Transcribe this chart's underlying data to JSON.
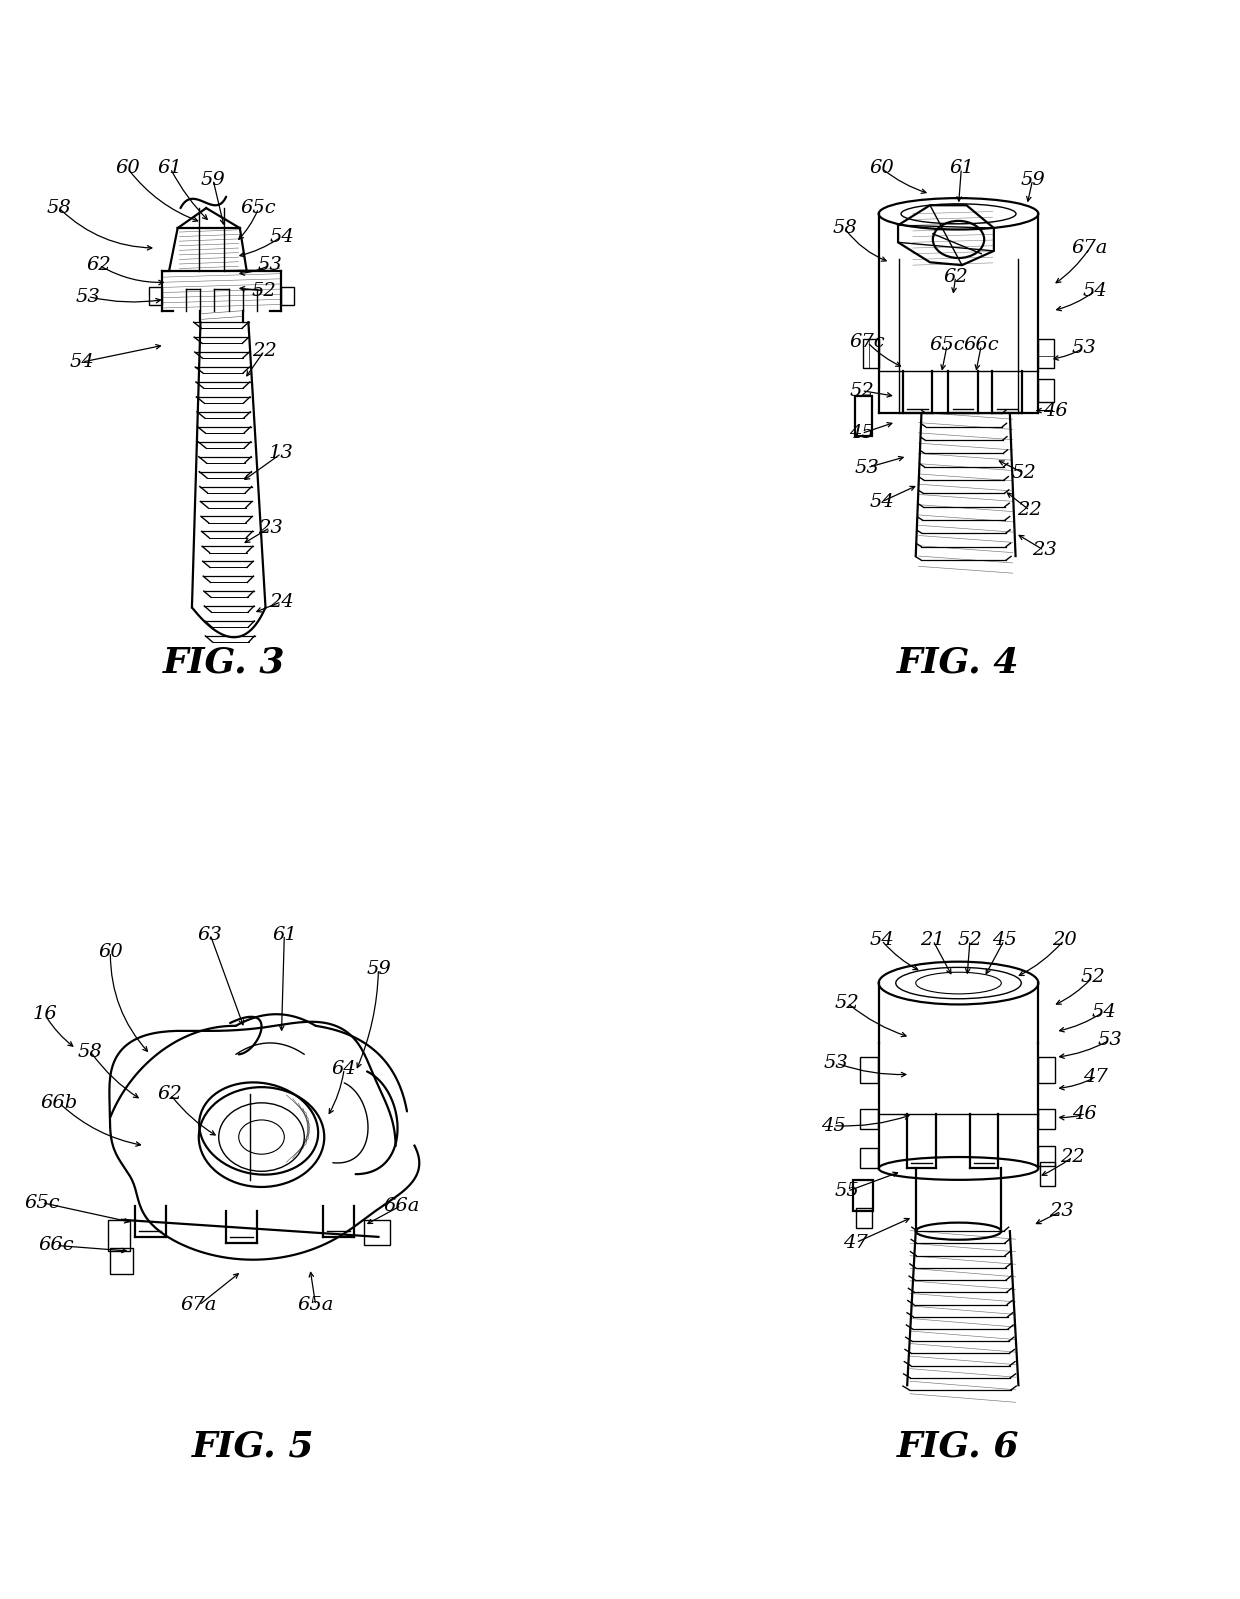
{
  "bg": "#ffffff",
  "lc": "#000000",
  "fw": 12.4,
  "fh": 15.99,
  "dpi": 100,
  "lw": 1.6,
  "lt": 1.0,
  "ls": 0.5,
  "fs_ref": 14,
  "fs_fig": 26,
  "fig3_label": "FIG. 3",
  "fig4_label": "FIG. 4",
  "fig5_label": "FIG. 5",
  "fig6_label": "FIG. 6"
}
